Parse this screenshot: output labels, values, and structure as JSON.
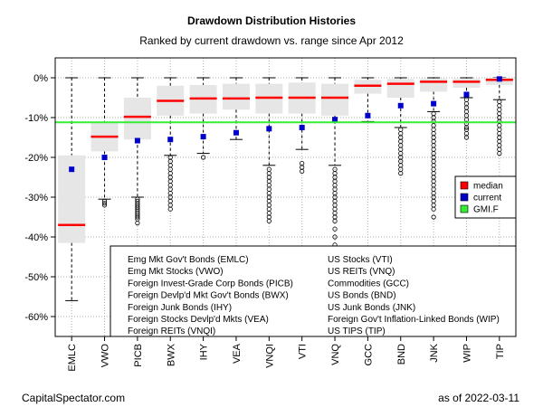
{
  "chart_data": {
    "type": "box",
    "title": "Drawdown Distribution Histories",
    "subtitle": "Ranked by current drawdown vs. range since Apr 2012",
    "ylim": [
      -65,
      5
    ],
    "yticks": [
      0,
      -10,
      -20,
      -30,
      -40,
      -50,
      -60
    ],
    "ytick_labels": [
      "0%",
      "-10%",
      "-20%",
      "-30%",
      "-40%",
      "-50%",
      "-60%"
    ],
    "grid": true,
    "gmi_f_line": -11.2,
    "categories": [
      "EMLC",
      "VWO",
      "PICB",
      "BWX",
      "IHY",
      "VEA",
      "VNQI",
      "VTI",
      "VNQ",
      "GCC",
      "BND",
      "JNK",
      "WIP",
      "TIP"
    ],
    "boxes": [
      {
        "ticker": "EMLC",
        "whisker_high": 0,
        "q3": -19.5,
        "median": -37,
        "q1": -41.5,
        "whisker_low": -56,
        "current": -23,
        "outliers": []
      },
      {
        "ticker": "VWO",
        "whisker_high": 0,
        "q3": -11,
        "median": -14.8,
        "q1": -18.5,
        "whisker_low": -30.5,
        "current": -20,
        "outliers": [
          -31,
          -31.5,
          -32
        ]
      },
      {
        "ticker": "PICB",
        "whisker_high": 0,
        "q3": -5,
        "median": -9.8,
        "q1": -15.5,
        "whisker_low": -30,
        "current": -15.8,
        "outliers": [
          -30.5,
          -31,
          -31.5,
          -32,
          -32.5,
          -33,
          -33.5,
          -34,
          -34.5,
          -35,
          -35.5,
          -36.5
        ]
      },
      {
        "ticker": "BWX",
        "whisker_high": 0,
        "q3": -2,
        "median": -5.8,
        "q1": -9.5,
        "whisker_low": -19.5,
        "current": -15.5,
        "outliers": [
          -20,
          -21,
          -22,
          -23,
          -24,
          -25,
          -26,
          -27,
          -28,
          -29,
          -30,
          -31,
          -32,
          -33
        ]
      },
      {
        "ticker": "IHY",
        "whisker_high": 0,
        "q3": -1.8,
        "median": -5.2,
        "q1": -9,
        "whisker_low": -19,
        "current": -14.8,
        "outliers": [
          -20
        ]
      },
      {
        "ticker": "VEA",
        "whisker_high": 0,
        "q3": -1.5,
        "median": -5.2,
        "q1": -8,
        "whisker_low": -15.5,
        "current": -13.8,
        "outliers": []
      },
      {
        "ticker": "VNQI",
        "whisker_high": 0,
        "q3": -1.5,
        "median": -5,
        "q1": -9,
        "whisker_low": -22,
        "current": -12.8,
        "outliers": [
          -23,
          -24,
          -25,
          -26,
          -27,
          -28,
          -29,
          -30,
          -31,
          -32,
          -33,
          -34,
          -35,
          -36
        ]
      },
      {
        "ticker": "VTI",
        "whisker_high": 0,
        "q3": -1.2,
        "median": -5,
        "q1": -9,
        "whisker_low": -18,
        "current": -12.5,
        "outliers": [
          -21.5,
          -22.5,
          -23.5
        ]
      },
      {
        "ticker": "VNQ",
        "whisker_high": 0,
        "q3": -1.5,
        "median": -5,
        "q1": -9.5,
        "whisker_low": -22,
        "current": -10.5,
        "outliers": [
          -23,
          -24,
          -25,
          -26,
          -27,
          -28,
          -29,
          -30,
          -31,
          -32,
          -33,
          -34,
          -35,
          -36,
          -38,
          -40,
          -42
        ]
      },
      {
        "ticker": "GCC",
        "whisker_high": 0,
        "q3": -0.5,
        "median": -2,
        "q1": -4,
        "whisker_low": -11,
        "current": -9.5,
        "outliers": []
      },
      {
        "ticker": "BND",
        "whisker_high": 0,
        "q3": -0.3,
        "median": -1.5,
        "q1": -5,
        "whisker_low": -12.5,
        "current": -7,
        "outliers": [
          -13,
          -14,
          -15,
          -16,
          -17,
          -18,
          -19,
          -20,
          -21,
          -22,
          -23,
          -24
        ]
      },
      {
        "ticker": "JNK",
        "whisker_high": 0,
        "q3": -0.2,
        "median": -1,
        "q1": -3.5,
        "whisker_low": -8.5,
        "current": -6.5,
        "outliers": [
          -9,
          -10,
          -11,
          -12,
          -13,
          -14,
          -15,
          -16,
          -17,
          -18,
          -19,
          -20,
          -21,
          -22,
          -23,
          -24,
          -25,
          -26,
          -27,
          -28,
          -29,
          -30,
          -31,
          -32,
          -33,
          -35
        ]
      },
      {
        "ticker": "WIP",
        "whisker_high": 0,
        "q3": -0.2,
        "median": -1,
        "q1": -2.5,
        "whisker_low": -5,
        "current": -4.2,
        "outliers": [
          -5.5,
          -6.5,
          -7.5,
          -8.5,
          -9.5,
          -10.5,
          -11.5,
          -12.5,
          -13,
          -14,
          -15
        ]
      },
      {
        "ticker": "TIP",
        "whisker_high": 0,
        "q3": 0,
        "median": -0.5,
        "q1": -1.8,
        "whisker_low": -5.5,
        "current": -0.3,
        "outliers": [
          -6,
          -7,
          -8,
          -9,
          -10,
          -11,
          -12,
          -13,
          -14,
          -15,
          -16,
          -17,
          -18,
          -19
        ]
      }
    ],
    "legend": [
      {
        "label": "median",
        "color": "#ff0000"
      },
      {
        "label": "current",
        "color": "#0000cc"
      },
      {
        "label": "GMI.F",
        "color": "#33ee33"
      }
    ],
    "key_left": [
      "Emg Mkt Gov't Bonds (EMLC)",
      "Emg Mkt Stocks (VWO)",
      "Foreign Invest-Grade Corp Bonds (PICB)",
      "Foreign Devlp'd Mkt Gov't Bonds (BWX)",
      "Foreign Junk Bonds (IHY)",
      "Foreign Stocks Devlp'd Mkts (VEA)",
      "Foreign REITs (VNQI)"
    ],
    "key_right": [
      "US Stocks (VTI)",
      "US REITs (VNQ)",
      "Commodities (GCC)",
      "US Bonds (BND)",
      "US Junk Bonds (JNK)",
      "Foreign Gov't Inflation-Linked Bonds (WIP)",
      "US TIPS (TIP)"
    ]
  },
  "footer": {
    "source": "CapitalSpectator.com",
    "date": "as of  2022-03-11"
  },
  "colors": {
    "median": "#ff0000",
    "current": "#0000cc",
    "gmi_line": "#33ee33",
    "box_fill": "#e6e6e6",
    "grid": "#b0b0b0"
  }
}
